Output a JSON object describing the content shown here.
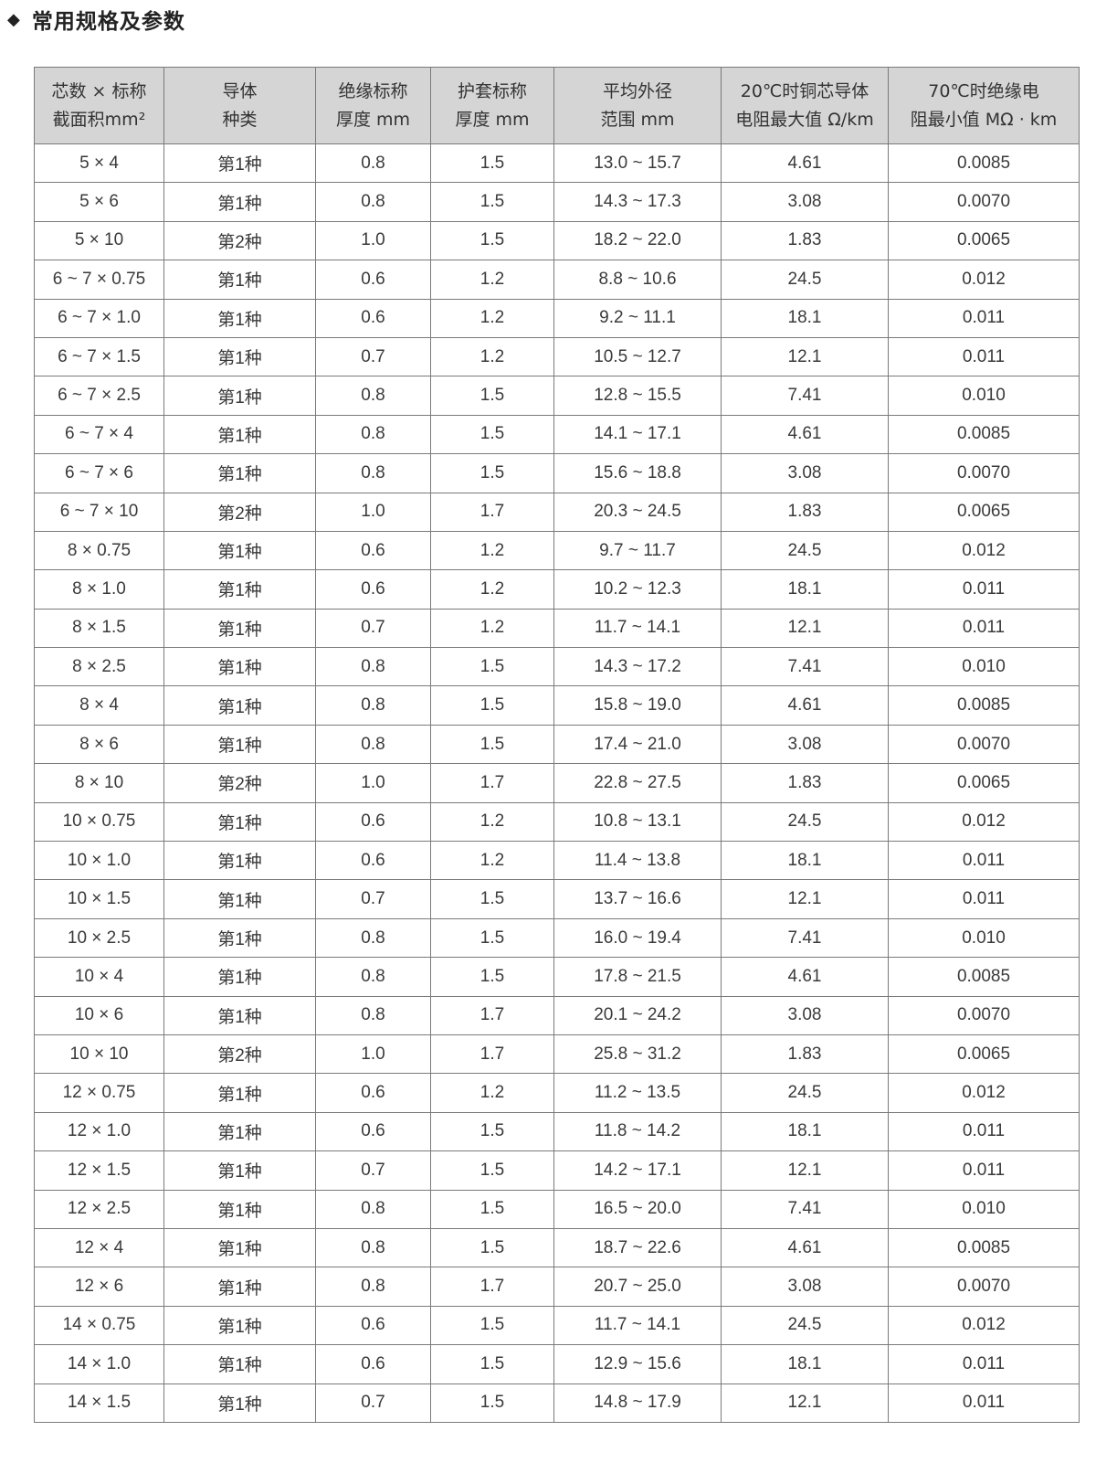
{
  "title": "常用规格及参数",
  "title_icon": "diamond-bullet",
  "table": {
    "headers": [
      [
        "芯数 × 标称",
        "截面积mm²"
      ],
      [
        "导体",
        "种类"
      ],
      [
        "绝缘标称",
        "厚度 mm"
      ],
      [
        "护套标称",
        "厚度 mm"
      ],
      [
        "平均外径",
        "范围 mm"
      ],
      [
        "20℃时铜芯导体",
        "电阻最大值 Ω/km"
      ],
      [
        "70℃时绝缘电",
        "阻最小值 MΩ · km"
      ]
    ],
    "rows": [
      [
        "5 × 4",
        "第1种",
        "0.8",
        "1.5",
        "13.0 ~ 15.7",
        "4.61",
        "0.0085"
      ],
      [
        "5 × 6",
        "第1种",
        "0.8",
        "1.5",
        "14.3 ~ 17.3",
        "3.08",
        "0.0070"
      ],
      [
        "5 × 10",
        "第2种",
        "1.0",
        "1.5",
        "18.2 ~ 22.0",
        "1.83",
        "0.0065"
      ],
      [
        "6 ~ 7 × 0.75",
        "第1种",
        "0.6",
        "1.2",
        "8.8 ~ 10.6",
        "24.5",
        "0.012"
      ],
      [
        "6 ~ 7 × 1.0",
        "第1种",
        "0.6",
        "1.2",
        "9.2 ~ 11.1",
        "18.1",
        "0.011"
      ],
      [
        "6 ~ 7 × 1.5",
        "第1种",
        "0.7",
        "1.2",
        "10.5 ~ 12.7",
        "12.1",
        "0.011"
      ],
      [
        "6 ~ 7 × 2.5",
        "第1种",
        "0.8",
        "1.5",
        "12.8 ~ 15.5",
        "7.41",
        "0.010"
      ],
      [
        "6 ~ 7 × 4",
        "第1种",
        "0.8",
        "1.5",
        "14.1 ~ 17.1",
        "4.61",
        "0.0085"
      ],
      [
        "6 ~ 7 × 6",
        "第1种",
        "0.8",
        "1.5",
        "15.6 ~ 18.8",
        "3.08",
        "0.0070"
      ],
      [
        "6 ~ 7 × 10",
        "第2种",
        "1.0",
        "1.7",
        "20.3 ~ 24.5",
        "1.83",
        "0.0065"
      ],
      [
        "8 × 0.75",
        "第1种",
        "0.6",
        "1.2",
        "9.7 ~ 11.7",
        "24.5",
        "0.012"
      ],
      [
        "8 × 1.0",
        "第1种",
        "0.6",
        "1.2",
        "10.2 ~ 12.3",
        "18.1",
        "0.011"
      ],
      [
        "8 × 1.5",
        "第1种",
        "0.7",
        "1.2",
        "11.7 ~ 14.1",
        "12.1",
        "0.011"
      ],
      [
        "8 × 2.5",
        "第1种",
        "0.8",
        "1.5",
        "14.3 ~ 17.2",
        "7.41",
        "0.010"
      ],
      [
        "8 × 4",
        "第1种",
        "0.8",
        "1.5",
        "15.8 ~ 19.0",
        "4.61",
        "0.0085"
      ],
      [
        "8 × 6",
        "第1种",
        "0.8",
        "1.5",
        "17.4 ~ 21.0",
        "3.08",
        "0.0070"
      ],
      [
        "8 × 10",
        "第2种",
        "1.0",
        "1.7",
        "22.8 ~ 27.5",
        "1.83",
        "0.0065"
      ],
      [
        "10 × 0.75",
        "第1种",
        "0.6",
        "1.2",
        "10.8 ~ 13.1",
        "24.5",
        "0.012"
      ],
      [
        "10 × 1.0",
        "第1种",
        "0.6",
        "1.2",
        "11.4 ~ 13.8",
        "18.1",
        "0.011"
      ],
      [
        "10 × 1.5",
        "第1种",
        "0.7",
        "1.5",
        "13.7 ~ 16.6",
        "12.1",
        "0.011"
      ],
      [
        "10 × 2.5",
        "第1种",
        "0.8",
        "1.5",
        "16.0 ~ 19.4",
        "7.41",
        "0.010"
      ],
      [
        "10 × 4",
        "第1种",
        "0.8",
        "1.5",
        "17.8 ~ 21.5",
        "4.61",
        "0.0085"
      ],
      [
        "10 × 6",
        "第1种",
        "0.8",
        "1.7",
        "20.1 ~ 24.2",
        "3.08",
        "0.0070"
      ],
      [
        "10 × 10",
        "第2种",
        "1.0",
        "1.7",
        "25.8 ~ 31.2",
        "1.83",
        "0.0065"
      ],
      [
        "12 × 0.75",
        "第1种",
        "0.6",
        "1.2",
        "11.2 ~ 13.5",
        "24.5",
        "0.012"
      ],
      [
        "12 × 1.0",
        "第1种",
        "0.6",
        "1.5",
        "11.8 ~ 14.2",
        "18.1",
        "0.011"
      ],
      [
        "12 × 1.5",
        "第1种",
        "0.7",
        "1.5",
        "14.2 ~ 17.1",
        "12.1",
        "0.011"
      ],
      [
        "12 × 2.5",
        "第1种",
        "0.8",
        "1.5",
        "16.5 ~ 20.0",
        "7.41",
        "0.010"
      ],
      [
        "12 × 4",
        "第1种",
        "0.8",
        "1.5",
        "18.7 ~ 22.6",
        "4.61",
        "0.0085"
      ],
      [
        "12 × 6",
        "第1种",
        "0.8",
        "1.7",
        "20.7 ~ 25.0",
        "3.08",
        "0.0070"
      ],
      [
        "14 × 0.75",
        "第1种",
        "0.6",
        "1.5",
        "11.7 ~ 14.1",
        "24.5",
        "0.012"
      ],
      [
        "14 × 1.0",
        "第1种",
        "0.6",
        "1.5",
        "12.9 ~ 15.6",
        "18.1",
        "0.011"
      ],
      [
        "14 × 1.5",
        "第1种",
        "0.7",
        "1.5",
        "14.8 ~ 17.9",
        "12.1",
        "0.011"
      ]
    ]
  }
}
